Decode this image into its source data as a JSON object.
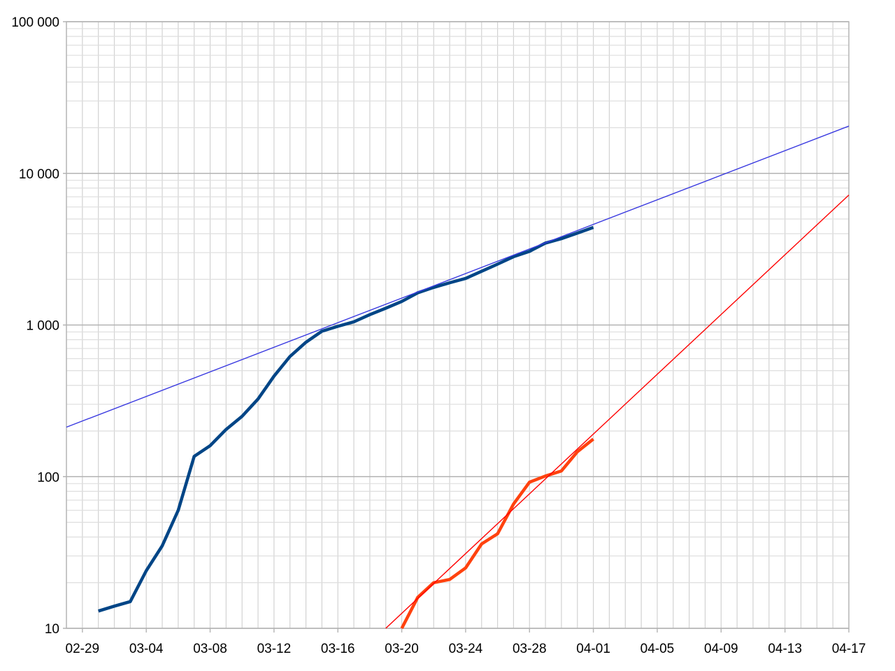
{
  "chart_data": {
    "type": "line",
    "title": "",
    "xlabel": "",
    "ylabel": "",
    "y_scale": "log",
    "ylim": [
      10,
      100000
    ],
    "xlim": [
      "2020-02-28",
      "2020-04-17"
    ],
    "grid": true,
    "x_tick_labels": [
      {
        "date": "2020-02-29",
        "label": "02-29"
      },
      {
        "date": "2020-03-04",
        "label": "03-04"
      },
      {
        "date": "2020-03-08",
        "label": "03-08"
      },
      {
        "date": "2020-03-12",
        "label": "03-12"
      },
      {
        "date": "2020-03-16",
        "label": "03-16"
      },
      {
        "date": "2020-03-20",
        "label": "03-20"
      },
      {
        "date": "2020-03-24",
        "label": "03-24"
      },
      {
        "date": "2020-03-28",
        "label": "03-28"
      },
      {
        "date": "2020-04-01",
        "label": "04-01"
      },
      {
        "date": "2020-04-05",
        "label": "04-05"
      },
      {
        "date": "2020-04-09",
        "label": "04-09"
      },
      {
        "date": "2020-04-13",
        "label": "04-13"
      },
      {
        "date": "2020-04-17",
        "label": "04-17"
      }
    ],
    "y_tick_labels": [
      {
        "value": 10,
        "label": "10"
      },
      {
        "value": 100,
        "label": "100"
      },
      {
        "value": 1000,
        "label": "1 000"
      },
      {
        "value": 10000,
        "label": "10 000"
      },
      {
        "value": 100000,
        "label": "100 000"
      }
    ],
    "series": [
      {
        "color": "#004586",
        "kind": "data",
        "points": [
          [
            "2020-03-01",
            13
          ],
          [
            "2020-03-02",
            14
          ],
          [
            "2020-03-03",
            15
          ],
          [
            "2020-03-04",
            24
          ],
          [
            "2020-03-05",
            35
          ],
          [
            "2020-03-06",
            60
          ],
          [
            "2020-03-07",
            136
          ],
          [
            "2020-03-08",
            160
          ],
          [
            "2020-03-09",
            205
          ],
          [
            "2020-03-10",
            250
          ],
          [
            "2020-03-11",
            325
          ],
          [
            "2020-03-12",
            460
          ],
          [
            "2020-03-13",
            620
          ],
          [
            "2020-03-14",
            770
          ],
          [
            "2020-03-15",
            910
          ],
          [
            "2020-03-16",
            980
          ],
          [
            "2020-03-17",
            1050
          ],
          [
            "2020-03-18",
            1170
          ],
          [
            "2020-03-19",
            1290
          ],
          [
            "2020-03-20",
            1430
          ],
          [
            "2020-03-21",
            1630
          ],
          [
            "2020-03-22",
            1770
          ],
          [
            "2020-03-23",
            1900
          ],
          [
            "2020-03-24",
            2030
          ],
          [
            "2020-03-25",
            2260
          ],
          [
            "2020-03-26",
            2520
          ],
          [
            "2020-03-27",
            2820
          ],
          [
            "2020-03-28",
            3060
          ],
          [
            "2020-03-29",
            3470
          ],
          [
            "2020-03-30",
            3710
          ],
          [
            "2020-03-31",
            4040
          ],
          [
            "2020-04-01",
            4400
          ]
        ]
      },
      {
        "color": "#3a3ae0",
        "kind": "trend",
        "points": [
          [
            "2020-02-28",
            212
          ],
          [
            "2020-04-17",
            20500
          ]
        ]
      },
      {
        "color": "#ff420e",
        "kind": "data",
        "points": [
          [
            "2020-03-20",
            10
          ],
          [
            "2020-03-21",
            16
          ],
          [
            "2020-03-22",
            20
          ],
          [
            "2020-03-23",
            21
          ],
          [
            "2020-03-24",
            25
          ],
          [
            "2020-03-25",
            36
          ],
          [
            "2020-03-26",
            42
          ],
          [
            "2020-03-27",
            66
          ],
          [
            "2020-03-28",
            92
          ],
          [
            "2020-03-29",
            101
          ],
          [
            "2020-03-30",
            109
          ],
          [
            "2020-03-31",
            146
          ],
          [
            "2020-04-01",
            177
          ]
        ]
      },
      {
        "color": "#ff0000",
        "kind": "trend",
        "points": [
          [
            "2020-03-19",
            10
          ],
          [
            "2020-04-17",
            7200
          ]
        ]
      }
    ]
  }
}
